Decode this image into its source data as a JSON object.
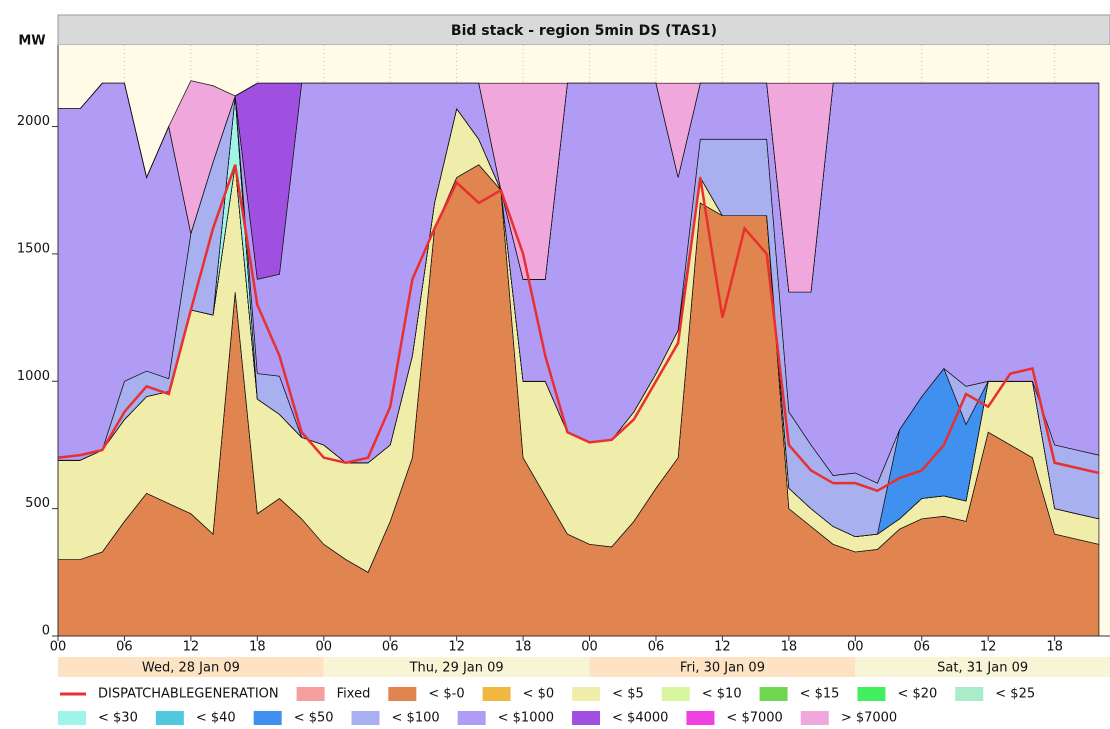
{
  "chart_data": {
    "type": "stacked_area",
    "title": "Bid stack - region 5min DS (TAS1)",
    "y_label": "MW",
    "xlim": [
      0,
      95
    ],
    "ylim": [
      0,
      2320
    ],
    "yticks": [
      0,
      500,
      1000,
      1500,
      2000
    ],
    "xticks": [
      {
        "value": 0,
        "label": "00"
      },
      {
        "value": 6,
        "label": "06"
      },
      {
        "value": 12,
        "label": "12"
      },
      {
        "value": 18,
        "label": "18"
      },
      {
        "value": 24,
        "label": "00"
      },
      {
        "value": 30,
        "label": "06"
      },
      {
        "value": 36,
        "label": "12"
      },
      {
        "value": 42,
        "label": "18"
      },
      {
        "value": 48,
        "label": "00"
      },
      {
        "value": 54,
        "label": "06"
      },
      {
        "value": 60,
        "label": "12"
      },
      {
        "value": 66,
        "label": "18"
      },
      {
        "value": 72,
        "label": "00"
      },
      {
        "value": 78,
        "label": "06"
      },
      {
        "value": 84,
        "label": "12"
      },
      {
        "value": 90,
        "label": "18"
      }
    ],
    "day_labels": [
      "Wed, 28 Jan 09",
      "Thu, 29 Jan 09",
      "Fri, 30 Jan 09",
      "Sat, 31 Jan 09"
    ],
    "grid": true,
    "x": [
      0,
      2,
      4,
      6,
      8,
      10,
      12,
      14,
      16,
      18,
      20,
      22,
      24,
      26,
      28,
      30,
      32,
      34,
      36,
      38,
      40,
      42,
      44,
      46,
      48,
      50,
      52,
      54,
      56,
      58,
      60,
      62,
      64,
      66,
      68,
      70,
      72,
      74,
      76,
      78,
      80,
      82,
      84,
      86,
      88,
      90,
      92,
      94
    ],
    "line": {
      "name": "DISPATCHABLEGENERATION",
      "color": "#e83030",
      "values": [
        700,
        710,
        730,
        880,
        980,
        950,
        1280,
        1600,
        1850,
        1300,
        1100,
        800,
        700,
        680,
        700,
        900,
        1400,
        1600,
        1780,
        1700,
        1750,
        1500,
        1100,
        800,
        760,
        770,
        850,
        1000,
        1150,
        1800,
        1250,
        1600,
        1500,
        750,
        650,
        600,
        600,
        570,
        620,
        650,
        750,
        950,
        900,
        1030,
        1050,
        680,
        660,
        640
      ]
    },
    "series": [
      {
        "name": "Fixed",
        "color": "#f4a0a0",
        "values": [
          0,
          0,
          0,
          0,
          0,
          0,
          0,
          0,
          0,
          0,
          0,
          0,
          0,
          0,
          0,
          0,
          0,
          0,
          0,
          0,
          0,
          0,
          0,
          0,
          0,
          0,
          0,
          0,
          0,
          0,
          0,
          0,
          0,
          0,
          0,
          0,
          0,
          0,
          0,
          0,
          0,
          0,
          0,
          0,
          0,
          0,
          0,
          0
        ]
      },
      {
        "name": "< $-0",
        "color": "#e0854f",
        "values": [
          300,
          300,
          330,
          450,
          560,
          520,
          480,
          400,
          1350,
          480,
          540,
          460,
          360,
          300,
          250,
          450,
          700,
          1600,
          1800,
          1850,
          1750,
          700,
          550,
          400,
          360,
          350,
          450,
          580,
          700,
          1700,
          1650,
          1650,
          1650,
          500,
          430,
          360,
          330,
          340,
          420,
          460,
          470,
          450,
          800,
          750,
          700,
          400,
          380,
          360
        ]
      },
      {
        "name": "< $0",
        "color": "#f0b840",
        "values": [
          0,
          0,
          0,
          0,
          0,
          0,
          0,
          0,
          0,
          0,
          0,
          0,
          0,
          0,
          0,
          0,
          0,
          0,
          0,
          0,
          0,
          0,
          0,
          0,
          0,
          0,
          0,
          0,
          0,
          0,
          0,
          0,
          0,
          0,
          0,
          0,
          0,
          0,
          0,
          0,
          0,
          0,
          0,
          0,
          0,
          0,
          0,
          0
        ]
      },
      {
        "name": "< $5",
        "color": "#f0ecaa",
        "values": [
          390,
          390,
          400,
          400,
          380,
          440,
          800,
          860,
          500,
          450,
          330,
          320,
          390,
          380,
          430,
          300,
          400,
          100,
          270,
          100,
          0,
          300,
          450,
          400,
          400,
          420,
          430,
          450,
          500,
          100,
          0,
          0,
          0,
          80,
          70,
          70,
          60,
          60,
          40,
          80,
          80,
          80,
          200,
          250,
          300,
          100,
          100,
          100
        ]
      },
      {
        "name": "< $10",
        "color": "#d8f5a0",
        "values": [
          0,
          0,
          0,
          0,
          0,
          0,
          0,
          0,
          0,
          0,
          0,
          0,
          0,
          0,
          0,
          0,
          0,
          0,
          0,
          0,
          0,
          0,
          0,
          0,
          0,
          0,
          0,
          0,
          0,
          0,
          0,
          0,
          0,
          0,
          0,
          0,
          0,
          0,
          0,
          0,
          0,
          0,
          0,
          0,
          0,
          0,
          0,
          0
        ]
      },
      {
        "name": "< $15",
        "color": "#70d850",
        "values": [
          0,
          0,
          0,
          0,
          0,
          0,
          0,
          0,
          0,
          0,
          0,
          0,
          0,
          0,
          0,
          0,
          0,
          0,
          0,
          0,
          0,
          0,
          0,
          0,
          0,
          0,
          0,
          0,
          0,
          0,
          0,
          0,
          0,
          0,
          0,
          0,
          0,
          0,
          0,
          0,
          0,
          0,
          0,
          0,
          0,
          0,
          0,
          0
        ]
      },
      {
        "name": "< $20",
        "color": "#40f060",
        "values": [
          0,
          0,
          0,
          0,
          0,
          0,
          0,
          0,
          0,
          0,
          0,
          0,
          0,
          0,
          0,
          0,
          0,
          0,
          0,
          0,
          0,
          0,
          0,
          0,
          0,
          0,
          0,
          0,
          0,
          0,
          0,
          0,
          0,
          0,
          0,
          0,
          0,
          0,
          0,
          0,
          0,
          0,
          0,
          0,
          0,
          0,
          0,
          0
        ]
      },
      {
        "name": "< $25",
        "color": "#a8ecc8",
        "values": [
          0,
          0,
          0,
          0,
          0,
          0,
          0,
          0,
          0,
          0,
          0,
          0,
          0,
          0,
          0,
          0,
          0,
          0,
          0,
          0,
          0,
          0,
          0,
          0,
          0,
          0,
          0,
          0,
          0,
          0,
          0,
          0,
          0,
          0,
          0,
          0,
          0,
          0,
          0,
          0,
          0,
          0,
          0,
          0,
          0,
          0,
          0,
          0
        ]
      },
      {
        "name": "< $30",
        "color": "#a0f5e8",
        "values": [
          0,
          0,
          0,
          0,
          0,
          0,
          0,
          0,
          270,
          0,
          0,
          0,
          0,
          0,
          0,
          0,
          0,
          0,
          0,
          0,
          0,
          0,
          0,
          0,
          0,
          0,
          0,
          0,
          0,
          0,
          0,
          0,
          0,
          0,
          0,
          0,
          0,
          0,
          0,
          0,
          0,
          0,
          0,
          0,
          0,
          0,
          0,
          0
        ]
      },
      {
        "name": "< $40",
        "color": "#50c8e0",
        "values": [
          0,
          0,
          0,
          0,
          0,
          0,
          0,
          0,
          0,
          0,
          0,
          0,
          0,
          0,
          0,
          0,
          0,
          0,
          0,
          0,
          0,
          0,
          0,
          0,
          0,
          0,
          0,
          0,
          0,
          0,
          0,
          0,
          0,
          0,
          0,
          0,
          0,
          0,
          0,
          0,
          0,
          0,
          0,
          0,
          0,
          0,
          0,
          0
        ]
      },
      {
        "name": "< $50",
        "color": "#4090f0",
        "values": [
          0,
          0,
          0,
          0,
          0,
          0,
          0,
          0,
          0,
          0,
          0,
          0,
          0,
          0,
          0,
          0,
          0,
          0,
          0,
          0,
          0,
          0,
          0,
          0,
          0,
          0,
          0,
          0,
          0,
          0,
          0,
          0,
          0,
          0,
          0,
          0,
          0,
          0,
          350,
          400,
          500,
          300,
          0,
          0,
          0,
          0,
          0,
          0
        ]
      },
      {
        "name": "< $100",
        "color": "#a8b0f0",
        "values": [
          0,
          0,
          0,
          150,
          100,
          50,
          300,
          600,
          0,
          100,
          150,
          0,
          0,
          0,
          0,
          0,
          0,
          0,
          0,
          0,
          0,
          0,
          0,
          0,
          0,
          0,
          0,
          0,
          0,
          150,
          300,
          300,
          300,
          300,
          250,
          200,
          250,
          200,
          0,
          0,
          0,
          150,
          0,
          0,
          0,
          250,
          250,
          250
        ]
      },
      {
        "name": "< $1000",
        "color": "#b09cf5",
        "values": [
          1380,
          1380,
          1440,
          1170,
          760,
          990,
          0,
          0,
          0,
          370,
          400,
          1390,
          1420,
          1490,
          1490,
          1420,
          1070,
          470,
          100,
          220,
          0,
          400,
          400,
          1370,
          1410,
          1400,
          1290,
          1140,
          600,
          220,
          220,
          220,
          220,
          470,
          600,
          1540,
          1530,
          1570,
          1360,
          1230,
          1120,
          1190,
          1170,
          1170,
          1170,
          1420,
          1440,
          1460
        ]
      },
      {
        "name": "< $4000",
        "color": "#a050e0",
        "values": [
          0,
          0,
          0,
          0,
          0,
          0,
          0,
          0,
          0,
          770,
          750,
          0,
          0,
          0,
          0,
          0,
          0,
          0,
          0,
          0,
          0,
          0,
          0,
          0,
          0,
          0,
          0,
          0,
          0,
          0,
          0,
          0,
          0,
          0,
          0,
          0,
          0,
          0,
          0,
          0,
          0,
          0,
          0,
          0,
          0,
          0,
          0,
          0
        ]
      },
      {
        "name": "< $7000",
        "color": "#f040e0",
        "values": [
          0,
          0,
          0,
          0,
          0,
          0,
          0,
          0,
          0,
          0,
          0,
          0,
          0,
          0,
          0,
          0,
          0,
          0,
          0,
          0,
          0,
          0,
          0,
          0,
          0,
          0,
          0,
          0,
          0,
          0,
          0,
          0,
          0,
          0,
          0,
          0,
          0,
          0,
          0,
          0,
          0,
          0,
          0,
          0,
          0,
          0,
          0,
          0
        ]
      },
      {
        "name": "> $7000",
        "color": "#f0a8dc",
        "values": [
          0,
          0,
          0,
          0,
          0,
          0,
          600,
          300,
          0,
          0,
          0,
          0,
          0,
          0,
          0,
          0,
          0,
          0,
          0,
          0,
          420,
          770,
          770,
          0,
          0,
          0,
          0,
          0,
          370,
          0,
          0,
          0,
          0,
          820,
          820,
          0,
          0,
          0,
          0,
          0,
          0,
          0,
          0,
          0,
          0,
          0,
          0,
          0
        ]
      }
    ]
  }
}
